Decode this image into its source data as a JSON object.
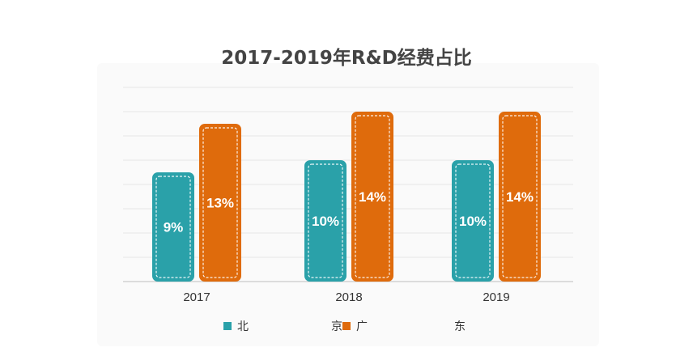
{
  "chart_data": {
    "type": "bar",
    "title": "2017-2019年R&D经费占比",
    "categories": [
      "2017",
      "2018",
      "2019"
    ],
    "series": [
      {
        "values": [
          9,
          10,
          10
        ],
        "value_labels": [
          "9%",
          "10%",
          "10%"
        ],
        "color": "#2aa1a9"
      },
      {
        "values": [
          13,
          14,
          14
        ],
        "value_labels": [
          "13%",
          "14%",
          "14%"
        ],
        "color": "#df6b0c"
      }
    ],
    "value_unit": "%",
    "ylim": [
      0,
      14
    ],
    "grid": true,
    "y_axis_tick_labels_visible": false,
    "legend": {
      "position": "bottom",
      "items": [
        {
          "label": "北",
          "color": "#2aa1a9"
        },
        {
          "label": "京",
          "color": null
        },
        {
          "label": "广",
          "color": "#df6b0c"
        },
        {
          "label": "东",
          "color": null
        }
      ]
    },
    "gridline_color": "#e6e6e6",
    "axis_color": "#bfbfbf"
  }
}
